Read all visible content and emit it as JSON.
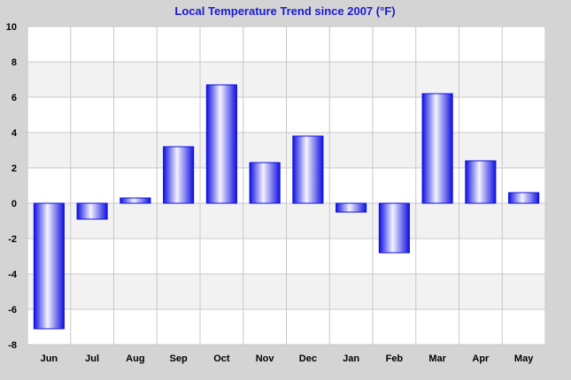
{
  "chart_data": {
    "type": "bar",
    "title": "Local Temperature Trend since 2007 (°F)",
    "xlabel": "",
    "ylabel": "",
    "categories": [
      "Jun",
      "Jul",
      "Aug",
      "Sep",
      "Oct",
      "Nov",
      "Dec",
      "Jan",
      "Feb",
      "Mar",
      "Apr",
      "May"
    ],
    "values": [
      -7.1,
      -0.9,
      0.3,
      3.2,
      6.7,
      2.3,
      3.8,
      -0.5,
      -2.8,
      6.2,
      2.4,
      0.6
    ],
    "ylim": [
      -8,
      10
    ],
    "yticks": [
      10,
      8,
      6,
      4,
      2,
      0,
      -2,
      -4,
      -6,
      -8
    ],
    "grid": true,
    "legend": "none",
    "colors": {
      "background": "#d4d4d4",
      "plot_band_light": "#ffffff",
      "plot_band_dark": "#f2f2f2",
      "grid_line": "#c8c8c8",
      "bar_edge": "#1010e0",
      "bar_center": "#f4f4ff",
      "title": "#1a1ad6"
    }
  }
}
